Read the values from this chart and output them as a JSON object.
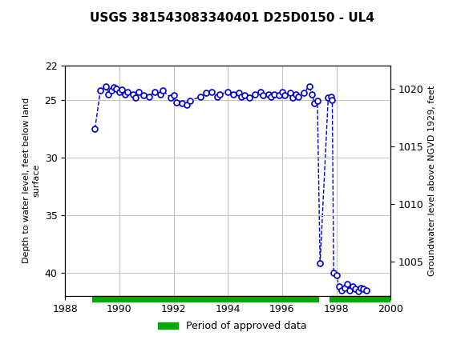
{
  "title": "USGS 381543083340401 D25D0150 - UL4",
  "ylabel_left": "Depth to water level, feet below land\nsurface",
  "ylabel_right": "Groundwater level above NGVD 1929, feet",
  "header_color": "#1a6b3c",
  "xlim": [
    1988,
    2000
  ],
  "ylim_left": [
    42,
    22
  ],
  "ylim_right": [
    1002,
    1022
  ],
  "yticks_left": [
    22,
    25,
    30,
    35,
    40
  ],
  "yticks_right": [
    1020,
    1015,
    1010,
    1005
  ],
  "xticks": [
    1988,
    1990,
    1992,
    1994,
    1996,
    1998,
    2000
  ],
  "legend_label": "Period of approved data",
  "legend_color": "#00aa00",
  "data_color": "#0000cc",
  "approved_bar_y": 42.3,
  "approved_bar_xstart": 1989.0,
  "approved_bar_xend": 1997.35,
  "approved_bar_xstart2": 1997.75,
  "approved_bar_xend2": 2000.0,
  "x": [
    1989.1,
    1989.3,
    1989.5,
    1989.6,
    1989.7,
    1989.8,
    1989.9,
    1990.0,
    1990.1,
    1990.2,
    1990.3,
    1990.5,
    1990.6,
    1990.7,
    1990.9,
    1991.1,
    1991.3,
    1991.5,
    1991.6,
    1991.9,
    1992.0,
    1992.1,
    1992.3,
    1992.5,
    1992.6,
    1993.0,
    1993.2,
    1993.4,
    1993.6,
    1993.7,
    1994.0,
    1994.2,
    1994.4,
    1994.5,
    1994.6,
    1994.8,
    1995.0,
    1995.2,
    1995.3,
    1995.5,
    1995.6,
    1995.7,
    1995.9,
    1996.0,
    1996.1,
    1996.3,
    1996.4,
    1996.5,
    1996.6,
    1996.8,
    1997.0,
    1997.1,
    1997.2,
    1997.3,
    1997.4,
    1997.7,
    1997.8,
    1997.85,
    1997.9,
    1998.0,
    1998.1,
    1998.2,
    1998.3,
    1998.4,
    1998.5,
    1998.6,
    1998.7,
    1998.8,
    1998.9,
    1999.0,
    1999.1
  ],
  "y": [
    27.5,
    24.2,
    23.8,
    24.5,
    24.2,
    23.9,
    24.0,
    24.3,
    24.1,
    24.5,
    24.3,
    24.5,
    24.8,
    24.3,
    24.6,
    24.7,
    24.3,
    24.5,
    24.2,
    24.8,
    24.6,
    25.2,
    25.3,
    25.4,
    25.1,
    24.7,
    24.4,
    24.3,
    24.7,
    24.5,
    24.3,
    24.5,
    24.4,
    24.7,
    24.6,
    24.8,
    24.5,
    24.3,
    24.6,
    24.5,
    24.7,
    24.5,
    24.6,
    24.3,
    24.6,
    24.4,
    24.8,
    24.5,
    24.7,
    24.4,
    23.8,
    24.5,
    25.3,
    25.1,
    39.2,
    24.8,
    24.7,
    25.0,
    40.0,
    40.2,
    41.2,
    41.5,
    41.3,
    41.0,
    41.5,
    41.2,
    41.4,
    41.6,
    41.3,
    41.4,
    41.5
  ]
}
